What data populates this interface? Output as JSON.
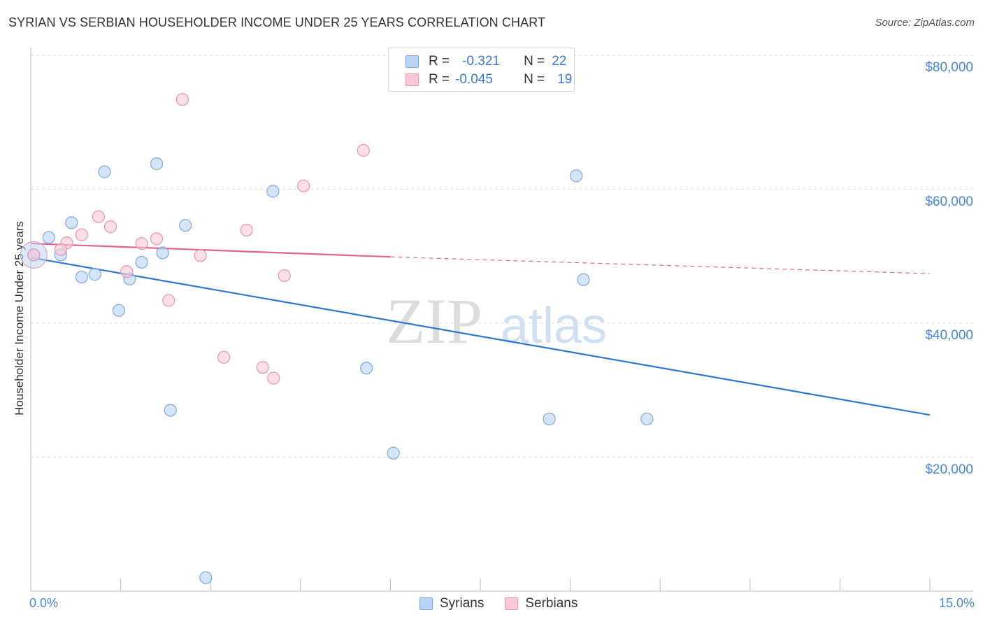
{
  "header": {
    "title": "SYRIAN VS SERBIAN HOUSEHOLDER INCOME UNDER 25 YEARS CORRELATION CHART",
    "source": "Source: ZipAtlas.com"
  },
  "watermark": {
    "zip": "ZIP",
    "atlas": "atlas"
  },
  "legend": {
    "r_label": "R =",
    "n_label": "N =",
    "syrians": {
      "r": "-0.321",
      "n": "22"
    },
    "serbians": {
      "r": "-0.045",
      "n": "19"
    }
  },
  "colors": {
    "syrian_fill": "#b8d3f5",
    "syrian_stroke": "#7ea8df",
    "syrian_line": "#2f76d2",
    "serbian_fill": "#f8c8d6",
    "serbian_stroke": "#e796ae",
    "serbian_line": "#e0658c",
    "tick_text": "#4a86d9",
    "grid": "#dddddd"
  },
  "chart_data": {
    "type": "scatter",
    "title": "SYRIAN VS SERBIAN HOUSEHOLDER INCOME UNDER 25 YEARS CORRELATION CHART",
    "xlabel": "",
    "ylabel": "Householder Income Under 25 years",
    "xlim": [
      0,
      15
    ],
    "ylim": [
      0,
      80000
    ],
    "x_tick_labels": [
      "0.0%",
      "15.0%"
    ],
    "y_ticks": [
      20000,
      40000,
      60000,
      80000
    ],
    "y_tick_labels": [
      "$20,000",
      "$40,000",
      "$60,000",
      "$80,000"
    ],
    "grid": true,
    "legend_position": "top-center",
    "series": [
      {
        "name": "Syrians",
        "points": [
          [
            0.05,
            50200
          ],
          [
            0.3,
            52800
          ],
          [
            0.5,
            50200
          ],
          [
            0.68,
            55000
          ],
          [
            0.85,
            46900
          ],
          [
            1.07,
            47300
          ],
          [
            1.23,
            62600
          ],
          [
            1.47,
            41900
          ],
          [
            1.65,
            46600
          ],
          [
            1.85,
            49100
          ],
          [
            2.1,
            63800
          ],
          [
            2.2,
            50500
          ],
          [
            2.33,
            27000
          ],
          [
            2.58,
            54600
          ],
          [
            2.92,
            2000
          ],
          [
            4.04,
            59700
          ],
          [
            5.6,
            33300
          ],
          [
            6.05,
            20600
          ],
          [
            8.65,
            25700
          ],
          [
            9.1,
            62000
          ],
          [
            9.22,
            46500
          ],
          [
            10.28,
            25700
          ]
        ],
        "trend": {
          "x": [
            0,
            15
          ],
          "y": [
            49800,
            26300
          ]
        }
      },
      {
        "name": "Serbians",
        "points": [
          [
            0.05,
            50200
          ],
          [
            0.6,
            52000
          ],
          [
            0.85,
            53200
          ],
          [
            1.13,
            55900
          ],
          [
            1.33,
            54400
          ],
          [
            1.6,
            47700
          ],
          [
            1.85,
            51900
          ],
          [
            2.1,
            52600
          ],
          [
            2.3,
            43400
          ],
          [
            2.83,
            50100
          ],
          [
            3.22,
            34900
          ],
          [
            3.6,
            53900
          ],
          [
            3.87,
            33400
          ],
          [
            4.05,
            31800
          ],
          [
            4.23,
            47100
          ],
          [
            4.55,
            60500
          ],
          [
            2.53,
            73400
          ],
          [
            5.55,
            65800
          ],
          [
            0.5,
            51000
          ]
        ],
        "trend": {
          "x": [
            0,
            6
          ],
          "y": [
            51900,
            49900
          ]
        },
        "trend_extension": {
          "x": [
            6,
            15
          ],
          "y": [
            49900,
            47400
          ]
        }
      }
    ]
  },
  "bottom_legend": {
    "syrians": "Syrians",
    "serbians": "Serbians"
  }
}
